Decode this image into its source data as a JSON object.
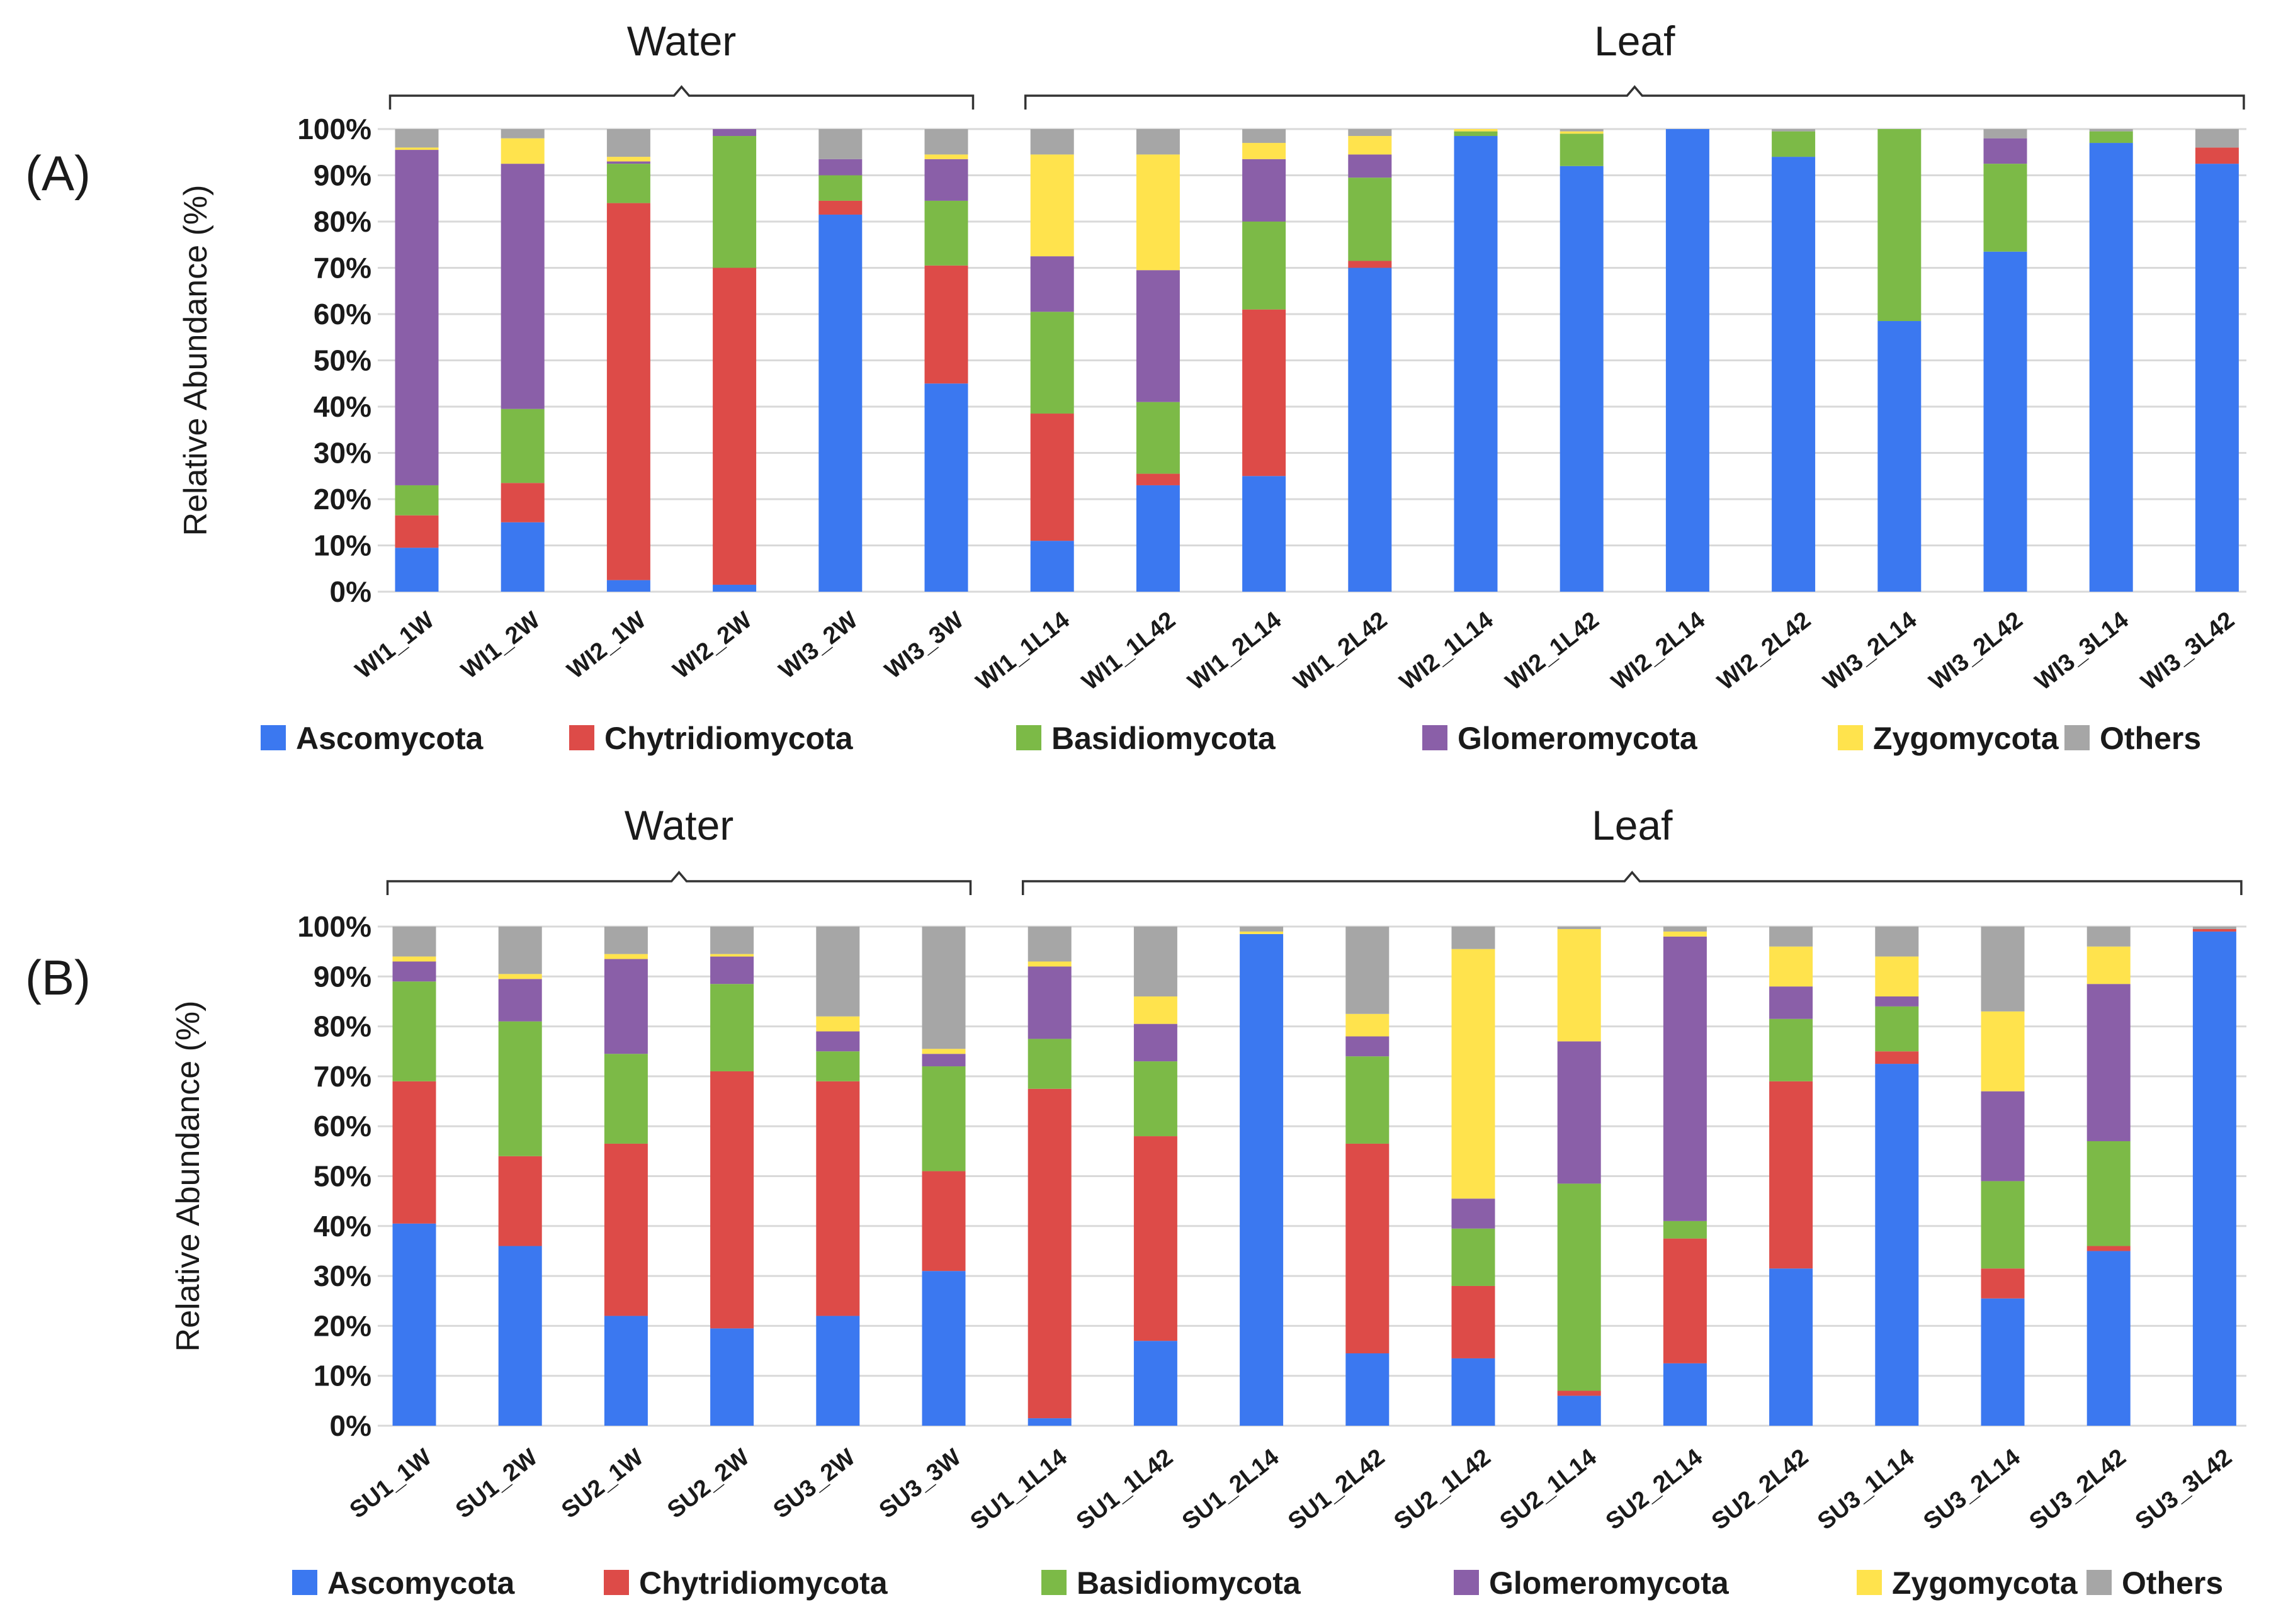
{
  "chart_data": [
    {
      "type": "bar",
      "stacked": true,
      "panel_label": "(A)",
      "ylabel": "Relative Abundance (%)",
      "ylim": [
        0,
        100
      ],
      "yticks": [
        "0%",
        "10%",
        "20%",
        "30%",
        "40%",
        "50%",
        "60%",
        "70%",
        "80%",
        "90%",
        "100%"
      ],
      "groups": [
        {
          "label": "Water",
          "first": 0,
          "last": 5
        },
        {
          "label": "Leaf",
          "first": 6,
          "last": 17
        }
      ],
      "categories": [
        "WI1_1W",
        "WI1_2W",
        "WI2_1W",
        "WI2_2W",
        "WI3_2W",
        "WI3_3W",
        "WI1_1L14",
        "WI1_1L42",
        "WI1_2L14",
        "WI1_2L42",
        "WI2_1L14",
        "WI2_1L42",
        "WI2_2L14",
        "WI2_2L42",
        "WI3_2L14",
        "WI3_2L42",
        "WI3_3L14",
        "WI3_3L42"
      ],
      "series": [
        {
          "name": "Ascomycota",
          "color": "#3b78f0",
          "values": [
            9.5,
            15,
            2.5,
            1.5,
            81.5,
            45,
            11,
            23,
            25,
            70,
            98.5,
            92,
            100,
            94,
            58.5,
            73.5,
            97,
            92.5
          ]
        },
        {
          "name": "Chytridiomycota",
          "color": "#dd4b48",
          "values": [
            7,
            8.5,
            81.5,
            68.5,
            3,
            25.5,
            27.5,
            2.5,
            36,
            1.5,
            0,
            0,
            0,
            0,
            0,
            0,
            0,
            3.5
          ]
        },
        {
          "name": "Basidiomycota",
          "color": "#7cba47",
          "values": [
            6.5,
            16,
            8.5,
            28.5,
            5.5,
            14,
            22,
            15.5,
            19,
            18,
            1,
            7,
            0,
            5.5,
            41.5,
            19,
            2.5,
            0
          ]
        },
        {
          "name": "Glomeromycota",
          "color": "#8a5fa8",
          "values": [
            72.5,
            53,
            0.5,
            1.5,
            3.5,
            9,
            12,
            28.5,
            13.5,
            5,
            0,
            0,
            0,
            0,
            0,
            5.5,
            0,
            0
          ]
        },
        {
          "name": "Zygomycota",
          "color": "#ffe34d",
          "values": [
            0.5,
            5.5,
            1,
            0,
            0,
            1,
            22,
            25,
            3.5,
            4,
            0.5,
            0.5,
            0,
            0,
            0,
            0,
            0,
            0
          ]
        },
        {
          "name": "Others",
          "color": "#a6a6a6",
          "values": [
            4,
            2,
            6,
            0,
            6.5,
            5.5,
            5.5,
            5.5,
            3,
            1.5,
            0,
            0.5,
            0,
            0.5,
            0,
            2,
            0.5,
            4
          ]
        }
      ],
      "legend": "bottom"
    },
    {
      "type": "bar",
      "stacked": true,
      "panel_label": "(B)",
      "ylabel": "Relative Abundance (%)",
      "ylim": [
        0,
        100
      ],
      "yticks": [
        "0%",
        "10%",
        "20%",
        "30%",
        "40%",
        "50%",
        "60%",
        "70%",
        "80%",
        "90%",
        "100%"
      ],
      "groups": [
        {
          "label": "Water",
          "first": 0,
          "last": 5
        },
        {
          "label": "Leaf",
          "first": 6,
          "last": 17
        }
      ],
      "categories": [
        "SU1_1W",
        "SU1_2W",
        "SU2_1W",
        "SU2_2W",
        "SU3_2W",
        "SU3_3W",
        "SU1_1L14",
        "SU1_1L42",
        "SU1_2L14",
        "SU1_2L42",
        "SU2_1L42",
        "SU2_1L14",
        "SU2_2L14",
        "SU2_2L42",
        "SU3_1L14",
        "SU3_2L14",
        "SU3_2L42",
        "SU3_3L42"
      ],
      "series": [
        {
          "name": "Ascomycota",
          "color": "#3b78f0",
          "values": [
            40.5,
            36,
            22,
            19.5,
            22,
            31,
            1.5,
            17,
            98.5,
            14.5,
            13.5,
            6,
            12.5,
            31.5,
            72.5,
            25.5,
            35,
            99
          ]
        },
        {
          "name": "Chytridiomycota",
          "color": "#dd4b48",
          "values": [
            28.5,
            18,
            34.5,
            51.5,
            47,
            20,
            66,
            41,
            0,
            42,
            14.5,
            1,
            25,
            37.5,
            2.5,
            6,
            1,
            0.5
          ]
        },
        {
          "name": "Basidiomycota",
          "color": "#7cba47",
          "values": [
            20,
            27,
            18,
            17.5,
            6,
            21,
            10,
            15,
            0,
            17.5,
            11.5,
            41.5,
            3.5,
            12.5,
            9,
            17.5,
            21,
            0
          ]
        },
        {
          "name": "Glomeromycota",
          "color": "#8a5fa8",
          "values": [
            4,
            8.5,
            19,
            5.5,
            4,
            2.5,
            14.5,
            7.5,
            0,
            4,
            6,
            28.5,
            57,
            6.5,
            2,
            18,
            31.5,
            0
          ]
        },
        {
          "name": "Zygomycota",
          "color": "#ffe34d",
          "values": [
            1,
            1,
            1,
            0.5,
            3,
            1,
            1,
            5.5,
            0.5,
            4.5,
            50,
            22.5,
            1,
            8,
            8,
            16,
            7.5,
            0
          ]
        },
        {
          "name": "Others",
          "color": "#a6a6a6",
          "values": [
            6,
            9.5,
            5.5,
            5.5,
            18,
            24.5,
            7,
            14,
            1,
            17.5,
            4.5,
            0.5,
            1,
            4,
            6,
            17,
            4,
            0.5
          ]
        }
      ],
      "legend": "bottom"
    }
  ]
}
